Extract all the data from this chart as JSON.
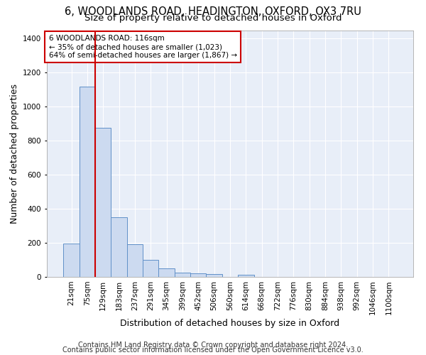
{
  "title": "6, WOODLANDS ROAD, HEADINGTON, OXFORD, OX3 7RU",
  "subtitle": "Size of property relative to detached houses in Oxford",
  "xlabel": "Distribution of detached houses by size in Oxford",
  "ylabel": "Number of detached properties",
  "bar_labels": [
    "21sqm",
    "75sqm",
    "129sqm",
    "183sqm",
    "237sqm",
    "291sqm",
    "345sqm",
    "399sqm",
    "452sqm",
    "506sqm",
    "560sqm",
    "614sqm",
    "668sqm",
    "722sqm",
    "776sqm",
    "830sqm",
    "884sqm",
    "938sqm",
    "992sqm",
    "1046sqm",
    "1100sqm"
  ],
  "bar_heights": [
    197,
    1120,
    878,
    350,
    193,
    100,
    52,
    23,
    21,
    17,
    0,
    14,
    0,
    0,
    0,
    0,
    0,
    0,
    0,
    0,
    0
  ],
  "bar_color": "#ccdaf0",
  "bar_edge_color": "#6090c8",
  "background_color": "#e8eef8",
  "grid_color": "#ffffff",
  "ylim": [
    0,
    1450
  ],
  "yticks": [
    0,
    200,
    400,
    600,
    800,
    1000,
    1200,
    1400
  ],
  "red_line_x": 1.5,
  "annotation_text": "6 WOODLANDS ROAD: 116sqm\n← 35% of detached houses are smaller (1,023)\n64% of semi-detached houses are larger (1,867) →",
  "annotation_box_color": "#ffffff",
  "annotation_border_color": "#cc0000",
  "footer_line1": "Contains HM Land Registry data © Crown copyright and database right 2024.",
  "footer_line2": "Contains public sector information licensed under the Open Government Licence v3.0.",
  "title_fontsize": 10.5,
  "subtitle_fontsize": 9.5,
  "axis_label_fontsize": 9,
  "tick_fontsize": 7.5,
  "annotation_fontsize": 7.5,
  "footer_fontsize": 7
}
